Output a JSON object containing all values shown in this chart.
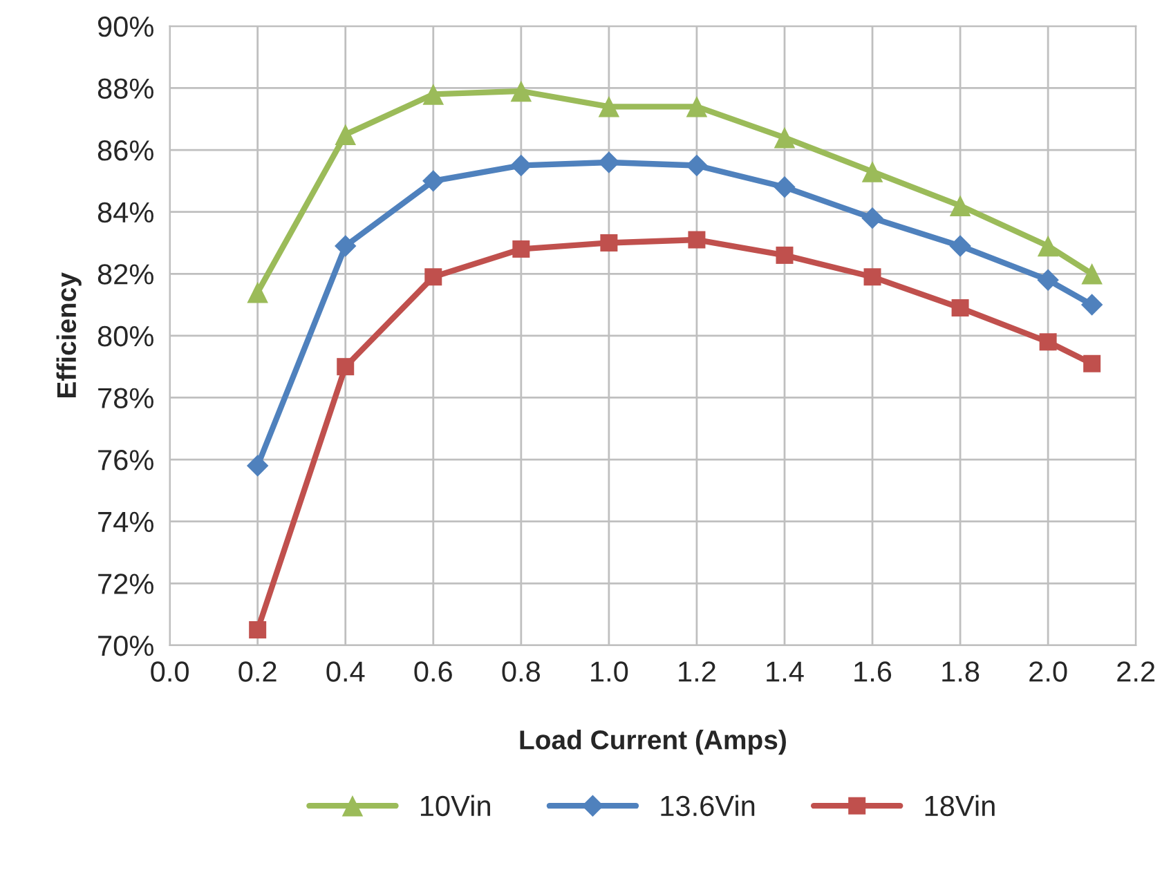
{
  "chart_data": {
    "type": "line",
    "xlabel": "Load Current (Amps)",
    "ylabel": "Efficiency",
    "x": [
      0.2,
      0.4,
      0.6,
      0.8,
      1.0,
      1.2,
      1.4,
      1.6,
      1.8,
      2.0,
      2.1
    ],
    "series": [
      {
        "name": "10Vin",
        "color": "#9bbb59",
        "marker": "triangle",
        "values": [
          81.4,
          86.5,
          87.8,
          87.9,
          87.4,
          87.4,
          86.4,
          85.3,
          84.2,
          82.9,
          82.0
        ]
      },
      {
        "name": "13.6Vin",
        "color": "#4f81bd",
        "marker": "diamond",
        "values": [
          75.8,
          82.9,
          85.0,
          85.5,
          85.6,
          85.5,
          84.8,
          83.8,
          82.9,
          81.8,
          81.0
        ]
      },
      {
        "name": "18Vin",
        "color": "#c0504d",
        "marker": "square",
        "values": [
          70.5,
          79.0,
          81.9,
          82.8,
          83.0,
          83.1,
          82.6,
          81.9,
          80.9,
          79.8,
          79.1
        ]
      }
    ],
    "xlim": [
      0.0,
      2.2
    ],
    "xticks": [
      {
        "value": 0.0,
        "label": "0.0"
      },
      {
        "value": 0.2,
        "label": "0.2"
      },
      {
        "value": 0.4,
        "label": "0.4"
      },
      {
        "value": 0.6,
        "label": "0.6"
      },
      {
        "value": 0.8,
        "label": "0.8"
      },
      {
        "value": 1.0,
        "label": "1.0"
      },
      {
        "value": 1.2,
        "label": "1.2"
      },
      {
        "value": 1.4,
        "label": "1.4"
      },
      {
        "value": 1.6,
        "label": "1.6"
      },
      {
        "value": 1.8,
        "label": "1.8"
      },
      {
        "value": 2.0,
        "label": "2.0"
      },
      {
        "value": 2.2,
        "label": "2.2"
      }
    ],
    "ylim": [
      70,
      90
    ],
    "yticks": [
      {
        "value": 70,
        "label": "70%"
      },
      {
        "value": 72,
        "label": "72%"
      },
      {
        "value": 74,
        "label": "74%"
      },
      {
        "value": 76,
        "label": "76%"
      },
      {
        "value": 78,
        "label": "78%"
      },
      {
        "value": 80,
        "label": "80%"
      },
      {
        "value": 82,
        "label": "82%"
      },
      {
        "value": 84,
        "label": "84%"
      },
      {
        "value": 86,
        "label": "86%"
      },
      {
        "value": 88,
        "label": "88%"
      },
      {
        "value": 90,
        "label": "90%"
      }
    ],
    "grid": true,
    "legend": "bottom",
    "line_style": "solid"
  }
}
